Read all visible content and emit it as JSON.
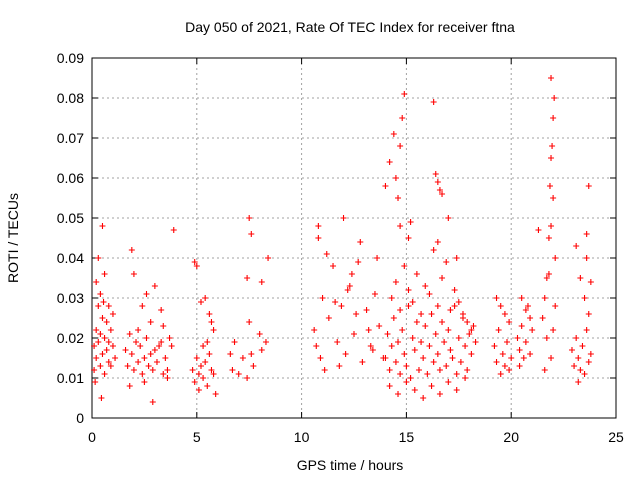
{
  "chart_data": {
    "type": "scatter",
    "title": "Day 050 of 2021, Rate Of TEC Index for receiver ftna",
    "xlabel": "GPS time / hours",
    "ylabel": "ROTI / TECUs",
    "xlim": [
      0,
      25
    ],
    "ylim": [
      0,
      0.09
    ],
    "xticks": [
      "0",
      "5",
      "10",
      "15",
      "20",
      "25"
    ],
    "yticks": [
      "0",
      "0.01",
      "0.02",
      "0.03",
      "0.04",
      "0.05",
      "0.06",
      "0.07",
      "0.08",
      "0.09"
    ],
    "grid": true,
    "marker": "plus",
    "color": "#ff0000",
    "series": [
      {
        "values_note_omitted": "",
        "x": [
          0.1,
          0.1,
          0.2,
          0.2,
          0.3,
          0.3,
          0.4,
          0.4,
          0.5,
          0.5,
          0.6,
          0.6,
          0.7,
          0.7,
          0.8,
          0.8,
          0.9,
          0.9,
          1.0,
          1.0,
          1.1,
          0.2,
          0.4,
          0.6,
          0.3,
          0.5,
          0.15,
          0.55,
          0.8,
          0.45,
          1.6,
          1.7,
          1.8,
          1.9,
          2.0,
          2.1,
          2.2,
          2.3,
          2.4,
          2.5,
          2.6,
          2.7,
          2.8,
          2.9,
          3.0,
          3.1,
          3.2,
          3.3,
          3.4,
          1.9,
          2.0,
          2.4,
          2.6,
          2.8,
          3.0,
          2.2,
          2.5,
          3.3,
          1.8,
          2.9,
          3.5,
          3.6,
          3.7,
          3.8,
          3.9,
          3.4,
          3.6,
          4.8,
          4.9,
          5.0,
          5.1,
          5.2,
          5.3,
          5.4,
          5.5,
          5.6,
          5.7,
          5.8,
          5.9,
          4.9,
          5.0,
          5.2,
          5.4,
          5.6,
          5.8,
          5.1,
          5.3,
          5.5,
          5.7,
          6.6,
          6.7,
          6.8,
          7.0,
          7.2,
          7.4,
          7.5,
          7.6,
          7.7,
          8.0,
          8.1,
          8.3,
          7.5,
          7.6,
          7.4,
          8.4,
          8.1,
          10.6,
          10.7,
          10.8,
          10.9,
          11.0,
          11.1,
          11.3,
          11.5,
          11.7,
          11.9,
          12.1,
          12.3,
          12.5,
          12.7,
          12.9,
          13.1,
          13.3,
          13.5,
          13.7,
          13.9,
          11.2,
          11.6,
          12.0,
          12.4,
          12.8,
          13.2,
          13.6,
          11.8,
          12.6,
          13.4,
          10.8,
          12.2,
          14.0,
          14.1,
          14.2,
          14.3,
          14.4,
          14.5,
          14.6,
          14.7,
          14.8,
          14.9,
          15.0,
          15.1,
          15.2,
          15.3,
          15.4,
          15.5,
          15.6,
          15.7,
          15.8,
          15.9,
          16.0,
          16.1,
          16.2,
          16.3,
          16.4,
          16.5,
          16.6,
          16.7,
          16.8,
          16.9,
          17.0,
          17.1,
          17.2,
          17.3,
          17.4,
          17.5,
          17.6,
          17.7,
          17.8,
          17.9,
          18.0,
          18.1,
          18.2,
          18.3,
          14.3,
          14.5,
          14.7,
          14.9,
          15.1,
          15.3,
          15.5,
          15.7,
          15.9,
          16.1,
          16.3,
          16.5,
          16.7,
          16.9,
          17.1,
          17.3,
          17.5,
          17.7,
          17.9,
          18.1,
          14.2,
          14.6,
          15.0,
          15.4,
          15.8,
          16.2,
          16.6,
          17.0,
          17.4,
          17.8,
          14.9,
          14.8,
          14.7,
          14.6,
          14.5,
          14.4,
          14.2,
          14.0,
          16.4,
          16.5,
          16.6,
          16.7,
          15.2,
          16.3,
          16.5,
          14.7,
          15.1,
          17.0,
          17.4,
          19.2,
          19.3,
          19.4,
          19.5,
          19.6,
          19.7,
          19.8,
          19.9,
          20.0,
          19.3,
          19.5,
          19.7,
          19.9,
          20.3,
          20.4,
          20.5,
          20.6,
          20.7,
          20.8,
          20.9,
          21.0,
          20.5,
          20.7,
          20.9,
          20.4,
          21.5,
          21.6,
          21.7,
          21.8,
          21.9,
          22.0,
          22.1,
          21.8,
          21.9,
          22.0,
          21.7,
          22.1,
          21.9,
          21.95,
          22.0,
          21.85,
          21.9,
          22.05,
          21.3,
          21.6,
          22.9,
          23.0,
          23.1,
          23.2,
          23.3,
          23.4,
          23.5,
          23.6,
          23.7,
          23.8,
          23.1,
          23.3,
          23.5,
          23.7,
          23.6,
          23.7,
          23.6,
          23.2,
          23.8
        ],
        "y": [
          0.018,
          0.012,
          0.022,
          0.015,
          0.019,
          0.028,
          0.013,
          0.021,
          0.016,
          0.025,
          0.011,
          0.02,
          0.017,
          0.024,
          0.014,
          0.019,
          0.022,
          0.013,
          0.018,
          0.026,
          0.015,
          0.034,
          0.031,
          0.036,
          0.04,
          0.048,
          0.009,
          0.029,
          0.028,
          0.005,
          0.017,
          0.013,
          0.021,
          0.016,
          0.012,
          0.019,
          0.014,
          0.018,
          0.011,
          0.015,
          0.02,
          0.013,
          0.016,
          0.012,
          0.017,
          0.014,
          0.018,
          0.019,
          0.011,
          0.042,
          0.036,
          0.028,
          0.031,
          0.024,
          0.033,
          0.022,
          0.009,
          0.027,
          0.008,
          0.004,
          0.015,
          0.012,
          0.02,
          0.018,
          0.047,
          0.023,
          0.01,
          0.012,
          0.009,
          0.015,
          0.011,
          0.013,
          0.01,
          0.014,
          0.008,
          0.016,
          0.012,
          0.011,
          0.006,
          0.039,
          0.038,
          0.029,
          0.03,
          0.026,
          0.022,
          0.007,
          0.018,
          0.019,
          0.024,
          0.016,
          0.012,
          0.019,
          0.011,
          0.015,
          0.01,
          0.024,
          0.016,
          0.013,
          0.021,
          0.017,
          0.019,
          0.05,
          0.046,
          0.035,
          0.04,
          0.034,
          0.022,
          0.018,
          0.045,
          0.015,
          0.03,
          0.012,
          0.025,
          0.038,
          0.019,
          0.028,
          0.016,
          0.033,
          0.021,
          0.039,
          0.014,
          0.027,
          0.018,
          0.031,
          0.023,
          0.015,
          0.041,
          0.029,
          0.05,
          0.036,
          0.044,
          0.022,
          0.04,
          0.013,
          0.026,
          0.017,
          0.048,
          0.032,
          0.015,
          0.021,
          0.012,
          0.018,
          0.025,
          0.014,
          0.019,
          0.011,
          0.022,
          0.016,
          0.013,
          0.028,
          0.01,
          0.02,
          0.017,
          0.024,
          0.012,
          0.019,
          0.015,
          0.023,
          0.011,
          0.018,
          0.026,
          0.014,
          0.021,
          0.016,
          0.012,
          0.024,
          0.019,
          0.013,
          0.022,
          0.017,
          0.015,
          0.028,
          0.011,
          0.02,
          0.014,
          0.025,
          0.018,
          0.012,
          0.021,
          0.016,
          0.023,
          0.019,
          0.03,
          0.034,
          0.027,
          0.038,
          0.032,
          0.029,
          0.036,
          0.026,
          0.033,
          0.031,
          0.042,
          0.028,
          0.035,
          0.039,
          0.027,
          0.032,
          0.029,
          0.026,
          0.024,
          0.022,
          0.008,
          0.006,
          0.009,
          0.007,
          0.005,
          0.008,
          0.006,
          0.009,
          0.007,
          0.01,
          0.081,
          0.075,
          0.068,
          0.055,
          0.06,
          0.071,
          0.064,
          0.058,
          0.061,
          0.059,
          0.057,
          0.056,
          0.049,
          0.079,
          0.044,
          0.048,
          0.045,
          0.05,
          0.04,
          0.018,
          0.014,
          0.022,
          0.011,
          0.016,
          0.013,
          0.019,
          0.012,
          0.015,
          0.03,
          0.028,
          0.026,
          0.024,
          0.02,
          0.017,
          0.023,
          0.015,
          0.019,
          0.028,
          0.016,
          0.022,
          0.03,
          0.027,
          0.025,
          0.013,
          0.025,
          0.03,
          0.02,
          0.036,
          0.015,
          0.022,
          0.028,
          0.045,
          0.048,
          0.055,
          0.035,
          0.04,
          0.065,
          0.068,
          0.075,
          0.058,
          0.085,
          0.08,
          0.047,
          0.012,
          0.017,
          0.013,
          0.02,
          0.015,
          0.012,
          0.018,
          0.011,
          0.022,
          0.014,
          0.016,
          0.043,
          0.035,
          0.03,
          0.026,
          0.046,
          0.058,
          0.04,
          0.009,
          0.034
        ]
      }
    ]
  }
}
